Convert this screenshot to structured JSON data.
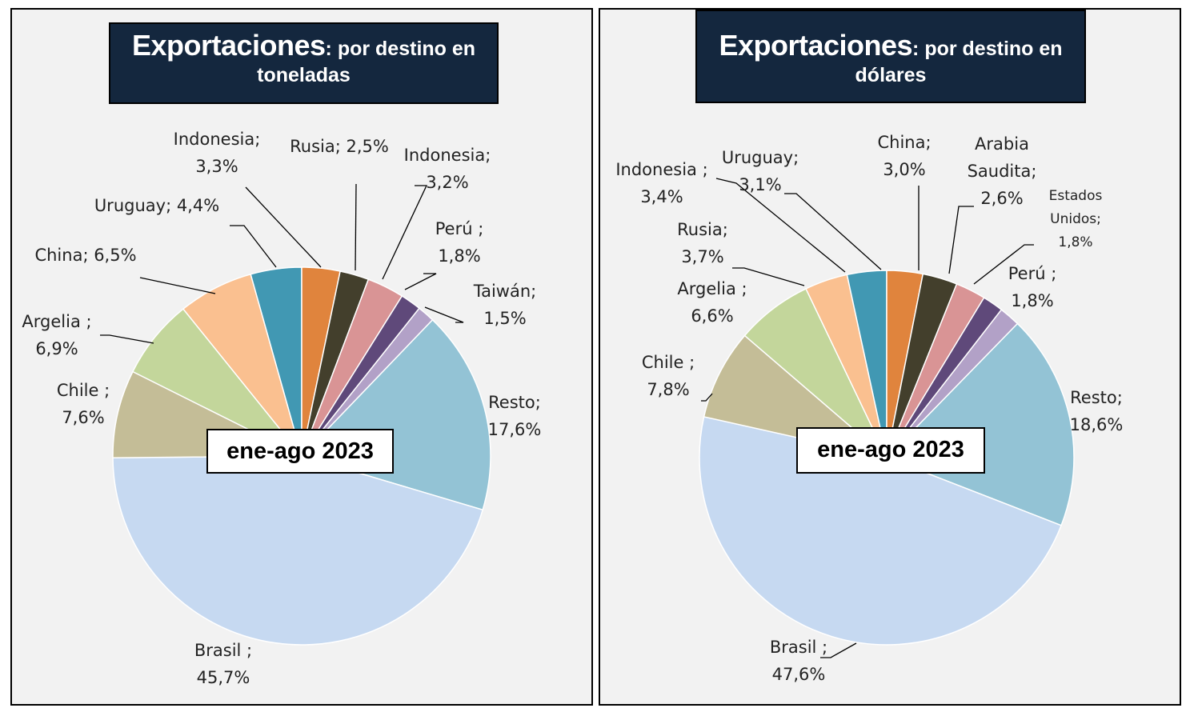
{
  "colors": {
    "title_bg": "#14273e",
    "panel_bg": "#f2f2f2",
    "slices": {
      "Resto": "#93c3d5",
      "Brasil": "#c6d9f1",
      "Chile": "#c4bd97",
      "Argelia": "#c3d69b",
      "China": "#fac090",
      "Uruguay": "#4198b3",
      "Indonesia": "#e0843d",
      "Rusia": "#433f2c",
      "Indonesia2": "#d99495",
      "Peru": "#5f497a",
      "Taiwan": "#b2a1c7",
      "Arabia": "#d99495",
      "EEUU": "#5f497a"
    }
  },
  "chart_data": [
    {
      "type": "pie",
      "title_main": "Exportaciones",
      "title_rest": ": por destino en",
      "title_line2": "toneladas",
      "period": "ene-ago 2023",
      "slices": [
        {
          "key": "Resto",
          "name": "Resto;",
          "value": 17.6,
          "label_lines": [
            "Resto;",
            "17,6%"
          ]
        },
        {
          "key": "Brasil",
          "name": "Brasil ;",
          "value": 45.7,
          "label_lines": [
            "Brasil ;",
            "45,7%"
          ]
        },
        {
          "key": "Chile",
          "name": "Chile ;",
          "value": 7.6,
          "label_lines": [
            "Chile ;",
            "7,6%"
          ]
        },
        {
          "key": "Argelia",
          "name": "Argelia ;",
          "value": 6.9,
          "label_lines": [
            "Argelia ;",
            "6,9%"
          ]
        },
        {
          "key": "China",
          "name": "China;",
          "value": 6.5,
          "label_lines": [
            "China; 6,5%"
          ]
        },
        {
          "key": "Uruguay",
          "name": "Uruguay;",
          "value": 4.4,
          "label_lines": [
            "Uruguay; 4,4%"
          ]
        },
        {
          "key": "Indonesia",
          "name": "Indonesia;",
          "value": 3.3,
          "label_lines": [
            "Indonesia;",
            "3,3%"
          ]
        },
        {
          "key": "Rusia",
          "name": "Rusia;",
          "value": 2.5,
          "label_lines": [
            "Rusia; 2,5%"
          ]
        },
        {
          "key": "Indonesia2",
          "name": "Indonesia;",
          "value": 3.2,
          "label_lines": [
            "Indonesia;",
            "3,2%"
          ]
        },
        {
          "key": "Peru",
          "name": "Perú ;",
          "value": 1.8,
          "label_lines": [
            "Perú ;",
            "1,8%"
          ]
        },
        {
          "key": "Taiwan",
          "name": "Taiwán;",
          "value": 1.5,
          "label_lines": [
            "Taiwán;",
            "1,5%"
          ]
        }
      ]
    },
    {
      "type": "pie",
      "title_main": "Exportaciones",
      "title_rest": ": por destino en",
      "title_line2": "dólares",
      "period": "ene-ago 2023",
      "slices": [
        {
          "key": "Resto",
          "name": "Resto;",
          "value": 18.6,
          "label_lines": [
            "Resto;",
            "18,6%"
          ]
        },
        {
          "key": "Brasil",
          "name": "Brasil ;",
          "value": 47.6,
          "label_lines": [
            "Brasil ;",
            "47,6%"
          ]
        },
        {
          "key": "Chile",
          "name": "Chile ;",
          "value": 7.8,
          "label_lines": [
            "Chile ;",
            "7,8%"
          ]
        },
        {
          "key": "Argelia",
          "name": "Argelia ;",
          "value": 6.6,
          "label_lines": [
            "Argelia ;",
            "6,6%"
          ]
        },
        {
          "key": "China",
          "name": "Rusia;",
          "value": 3.7,
          "label_lines": [
            "Rusia;",
            "3,7%"
          ]
        },
        {
          "key": "Uruguay",
          "name": "Indonesia ;",
          "value": 3.4,
          "label_lines": [
            "Indonesia ;",
            "3,4%"
          ]
        },
        {
          "key": "Indonesia",
          "name": "Uruguay;",
          "value": 3.1,
          "label_lines": [
            "Uruguay;",
            "3,1%"
          ]
        },
        {
          "key": "Rusia",
          "name": "China;",
          "value": 3.0,
          "label_lines": [
            "China;",
            "3,0%"
          ]
        },
        {
          "key": "Arabia",
          "name": "Arabia Saudita;",
          "value": 2.6,
          "label_lines": [
            "Arabia",
            "Saudita;",
            "2,6%"
          ]
        },
        {
          "key": "EEUU",
          "name": "Estados Unidos;",
          "value": 1.8,
          "label_lines": [
            "Estados",
            "Unidos;",
            "1,8%"
          ]
        },
        {
          "key": "Taiwan",
          "name": "Perú ;",
          "value": 1.8,
          "label_lines": [
            "Perú ;",
            "1,8%"
          ]
        }
      ]
    }
  ]
}
